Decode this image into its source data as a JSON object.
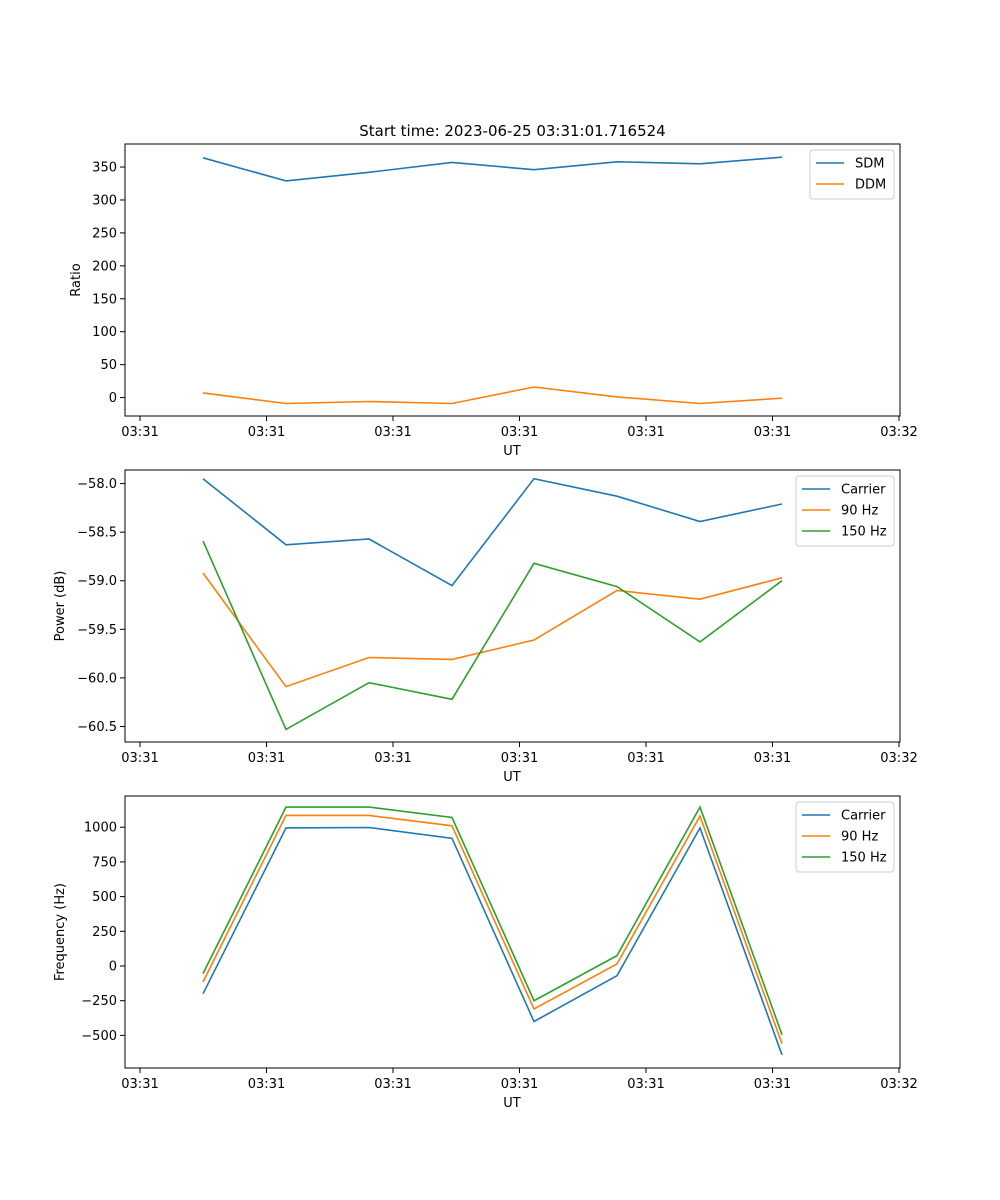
{
  "suptitle": "Start time: 2023-06-25 03:31:01.716524",
  "colors": {
    "blue": "#1f77b4",
    "orange": "#ff7f0e",
    "green": "#2ca02c"
  },
  "chart_data": [
    {
      "type": "line",
      "title": "Start time: 2023-06-25 03:31:01.716524",
      "xlabel": "UT",
      "ylabel": "Ratio",
      "x_tick_labels": [
        "03:31",
        "03:31",
        "03:31",
        "03:31",
        "03:31",
        "03:31",
        "03:31",
        "03:32"
      ],
      "y_ticks": [
        0,
        50,
        100,
        150,
        200,
        250,
        300,
        350
      ],
      "ylim": [
        -28,
        385
      ],
      "legend_position": "upper right",
      "series": [
        {
          "name": "SDM",
          "color": "#1f77b4",
          "values": [
            364,
            329,
            342,
            357,
            346,
            358,
            355,
            365
          ]
        },
        {
          "name": "DDM",
          "color": "#ff7f0e",
          "values": [
            7,
            -9,
            -6,
            -9,
            16,
            1,
            -9,
            -1
          ]
        }
      ]
    },
    {
      "type": "line",
      "title": "",
      "xlabel": "UT",
      "ylabel": "Power (dB)",
      "x_tick_labels": [
        "03:31",
        "03:31",
        "03:31",
        "03:31",
        "03:31",
        "03:31",
        "03:31",
        "03:32"
      ],
      "y_ticks": [
        -60.5,
        -60.0,
        -59.5,
        -59.0,
        -58.5,
        -58.0
      ],
      "y_tick_labels": [
        "−60.5",
        "−60.0",
        "−59.5",
        "−59.0",
        "−58.5",
        "−58.0"
      ],
      "ylim": [
        -60.66,
        -57.86
      ],
      "legend_position": "upper right",
      "series": [
        {
          "name": "Carrier",
          "color": "#1f77b4",
          "values": [
            -57.95,
            -58.63,
            -58.57,
            -59.05,
            -57.95,
            -58.13,
            -58.39,
            -58.21
          ]
        },
        {
          "name": "90 Hz",
          "color": "#ff7f0e",
          "values": [
            -58.92,
            -60.09,
            -59.79,
            -59.81,
            -59.61,
            -59.1,
            -59.19,
            -58.97
          ]
        },
        {
          "name": "150 Hz",
          "color": "#2ca02c",
          "values": [
            -58.59,
            -60.53,
            -60.05,
            -60.22,
            -58.82,
            -59.06,
            -59.63,
            -59.0
          ]
        }
      ]
    },
    {
      "type": "line",
      "title": "",
      "xlabel": "UT",
      "ylabel": "Frequency (Hz)",
      "x_tick_labels": [
        "03:31",
        "03:31",
        "03:31",
        "03:31",
        "03:31",
        "03:31",
        "03:31",
        "03:32"
      ],
      "y_ticks": [
        -500,
        -250,
        0,
        250,
        500,
        750,
        1000
      ],
      "y_tick_labels": [
        "−500",
        "−250",
        "0",
        "250",
        "500",
        "750",
        "1000"
      ],
      "ylim": [
        -735,
        1225
      ],
      "legend_position": "upper right",
      "series": [
        {
          "name": "Carrier",
          "color": "#1f77b4",
          "values": [
            -200,
            995,
            998,
            920,
            -400,
            -70,
            995,
            -640
          ]
        },
        {
          "name": "90 Hz",
          "color": "#ff7f0e",
          "values": [
            -115,
            1085,
            1085,
            1010,
            -310,
            15,
            1080,
            -560
          ]
        },
        {
          "name": "150 Hz",
          "color": "#2ca02c",
          "values": [
            -55,
            1145,
            1145,
            1070,
            -250,
            75,
            1145,
            -495
          ]
        }
      ]
    }
  ]
}
